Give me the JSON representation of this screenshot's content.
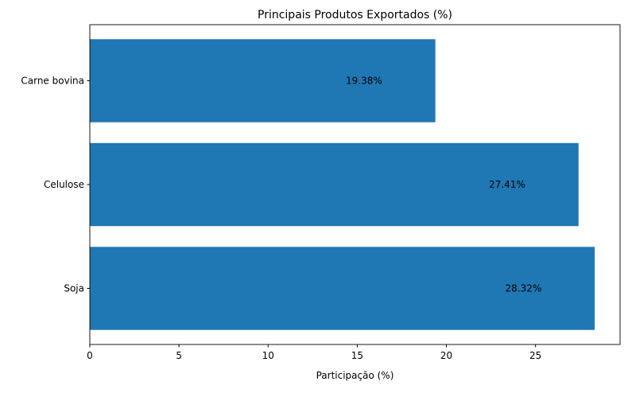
{
  "chart_data": {
    "type": "bar",
    "orientation": "horizontal",
    "title": "Principais Produtos Exportados (%)",
    "xlabel": "Participação (%)",
    "ylabel": "",
    "categories": [
      "Soja",
      "Celulose",
      "Carne bovina"
    ],
    "values": [
      28.32,
      27.41,
      19.38
    ],
    "data_labels": [
      "28.32%",
      "27.41%",
      "19.38%"
    ],
    "xlim": [
      0,
      29.74
    ],
    "xticks": [
      0,
      5,
      10,
      15,
      20,
      25
    ],
    "xtick_labels": [
      "0",
      "5",
      "10",
      "15",
      "20",
      "25"
    ],
    "grid": false,
    "bar_color": "#1f77b4"
  }
}
